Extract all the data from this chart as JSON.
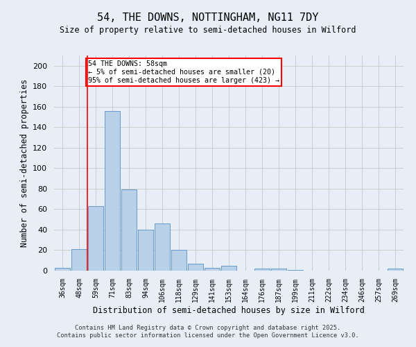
{
  "title": "54, THE DOWNS, NOTTINGHAM, NG11 7DY",
  "subtitle": "Size of property relative to semi-detached houses in Wilford",
  "xlabel": "Distribution of semi-detached houses by size in Wilford",
  "ylabel": "Number of semi-detached properties",
  "categories": [
    "36sqm",
    "48sqm",
    "59sqm",
    "71sqm",
    "83sqm",
    "94sqm",
    "106sqm",
    "118sqm",
    "129sqm",
    "141sqm",
    "153sqm",
    "164sqm",
    "176sqm",
    "187sqm",
    "199sqm",
    "211sqm",
    "222sqm",
    "234sqm",
    "246sqm",
    "257sqm",
    "269sqm"
  ],
  "values": [
    3,
    21,
    63,
    156,
    79,
    40,
    46,
    20,
    7,
    3,
    5,
    0,
    2,
    2,
    1,
    0,
    0,
    0,
    0,
    0,
    2
  ],
  "bar_color": "#b8d0e8",
  "bar_edge_color": "#6699cc",
  "grid_color": "#cccccc",
  "background_color": "#e8eef8",
  "red_line_x": 1.5,
  "annotation_title": "54 THE DOWNS: 58sqm",
  "annotation_line1": "← 5% of semi-detached houses are smaller (20)",
  "annotation_line2": "95% of semi-detached houses are larger (423) →",
  "footer_line1": "Contains HM Land Registry data © Crown copyright and database right 2025.",
  "footer_line2": "Contains public sector information licensed under the Open Government Licence v3.0.",
  "ylim": [
    0,
    210
  ],
  "yticks": [
    0,
    20,
    40,
    60,
    80,
    100,
    120,
    140,
    160,
    180,
    200
  ]
}
